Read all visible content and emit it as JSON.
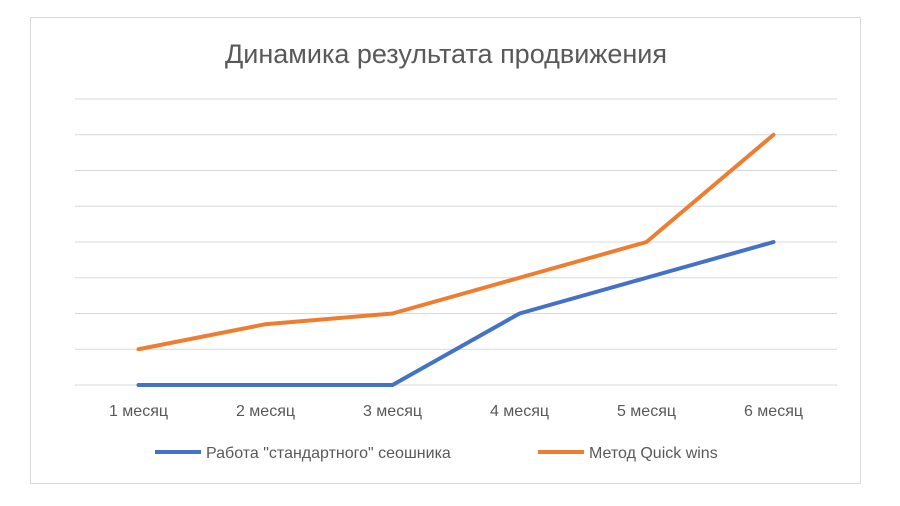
{
  "chart_data": {
    "type": "line",
    "title": "Динамика результата продвижения",
    "xlabel": "",
    "ylabel": "",
    "categories": [
      "1 месяц",
      "2 месяц",
      "3 месяц",
      "4 месяц",
      "5 месяц",
      "6 месяц"
    ],
    "ylim": [
      0,
      8
    ],
    "grid": true,
    "legend": "bottom",
    "series": [
      {
        "name": "Работа \"стандартного\" сеошника",
        "color": "#4472C4",
        "values": [
          0,
          0,
          0,
          2,
          3,
          4
        ]
      },
      {
        "name": "Метод Quick wins",
        "color": "#ED7D31",
        "values": [
          1,
          1.7,
          2,
          3,
          4,
          7.0
        ]
      }
    ]
  }
}
